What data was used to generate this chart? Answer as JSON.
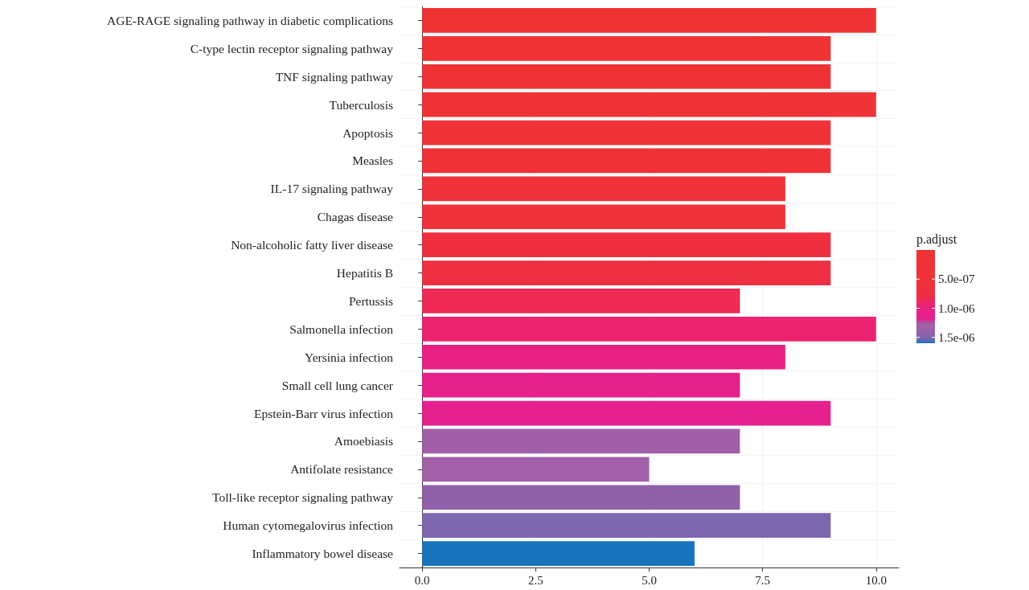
{
  "chart_data": {
    "type": "bar",
    "orientation": "horizontal",
    "categories": [
      "AGE-RAGE signaling pathway in diabetic complications",
      "C-type lectin receptor signaling pathway",
      "TNF signaling pathway",
      "Tuberculosis",
      "Apoptosis",
      "Measles",
      "IL-17 signaling pathway",
      "Chagas disease",
      "Non-alcoholic fatty liver disease",
      "Hepatitis B",
      "Pertussis",
      "Salmonella infection",
      "Yersinia infection",
      "Small cell lung cancer",
      "Epstein-Barr virus infection",
      "Amoebiasis",
      "Antifolate resistance",
      "Toll-like receptor signaling pathway",
      "Human cytomegalovirus infection",
      "Inflammatory bowel disease"
    ],
    "values": [
      10,
      9,
      9,
      10,
      9,
      9,
      8,
      8,
      9,
      9,
      7,
      10,
      8,
      7,
      9,
      7,
      5,
      7,
      9,
      6
    ],
    "colors": [
      "#ef3232",
      "#ef3234",
      "#ef3235",
      "#ef3336",
      "#ef3238",
      "#ef3238",
      "#ef3139",
      "#ef313a",
      "#ef2f40",
      "#ef2f42",
      "#ee2a55",
      "#ec2470",
      "#e92185",
      "#e7218b",
      "#e5208d",
      "#a05fa6",
      "#a261a8",
      "#9061a8",
      "#7d67ae",
      "#1874bd"
    ],
    "xlim": [
      -0.5,
      10.5
    ],
    "xticks": [
      {
        "value": 0,
        "label": "0.0"
      },
      {
        "value": 2.5,
        "label": "2.5"
      },
      {
        "value": 5,
        "label": "5.0"
      },
      {
        "value": 7.5,
        "label": "7.5"
      },
      {
        "value": 10,
        "label": "10.0"
      }
    ],
    "grid": true,
    "clabel": "p.adjust",
    "clim": [
      0,
      1.6e-06
    ],
    "cticks": [
      {
        "value": 5e-07,
        "label": "5.0e-07"
      },
      {
        "value": 1e-06,
        "label": "1.0e-06"
      },
      {
        "value": 1.5e-06,
        "label": "1.5e-06"
      }
    ]
  }
}
